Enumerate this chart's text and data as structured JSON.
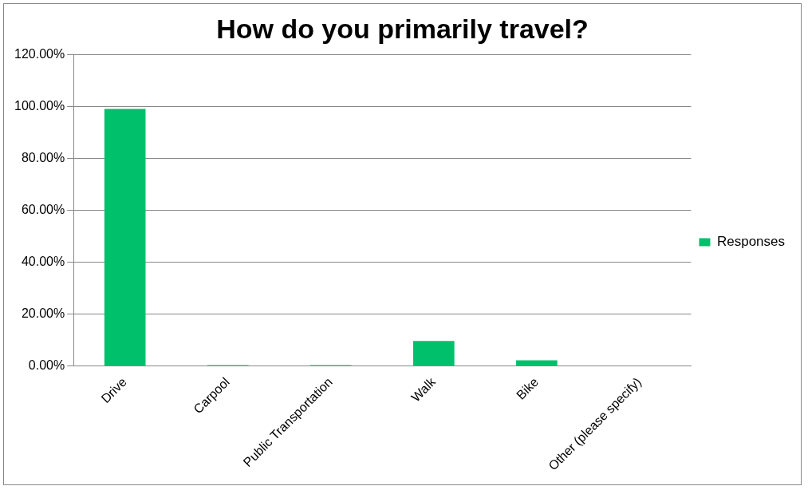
{
  "chart_data": {
    "type": "bar",
    "title": "How do you primarily travel?",
    "categories": [
      "Drive",
      "Carpool",
      "Public Transportation",
      "Walk",
      "Bike",
      "Other (please specify)"
    ],
    "series": [
      {
        "name": "Responses",
        "color": "#00c06c",
        "values": [
          99.2,
          0.4,
          0.4,
          9.7,
          2.2,
          0
        ]
      }
    ],
    "ylim": [
      0,
      120
    ],
    "yticks": [
      {
        "value": 0,
        "label": "0.00%"
      },
      {
        "value": 20,
        "label": "20.00%"
      },
      {
        "value": 40,
        "label": "40.00%"
      },
      {
        "value": 60,
        "label": "60.00%"
      },
      {
        "value": 80,
        "label": "80.00%"
      },
      {
        "value": 100,
        "label": "100.00%"
      },
      {
        "value": 120,
        "label": "120.00%"
      }
    ],
    "grid": "y",
    "legend": "right"
  }
}
